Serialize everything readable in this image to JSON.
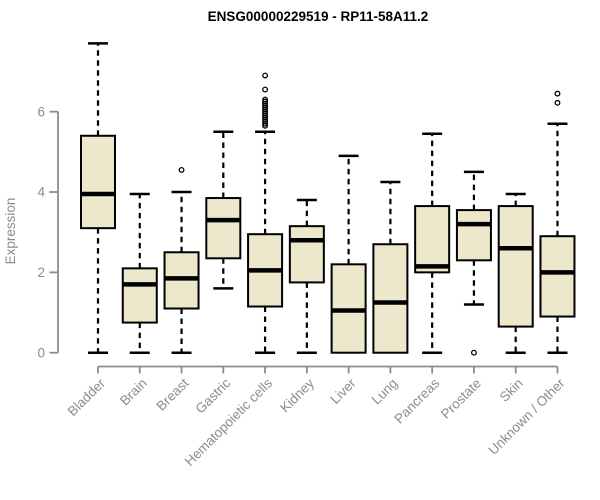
{
  "title": "ENSG00000229519 - RP11-58A11.2",
  "chart_data": {
    "type": "boxplot",
    "title": "ENSG00000229519 - RP11-58A11.2",
    "xlabel": "",
    "ylabel": "Expression",
    "ylim": [
      0,
      7.9
    ],
    "yticks": [
      0,
      2,
      4,
      6
    ],
    "grid": false,
    "legend": "none",
    "categories": [
      "Bladder",
      "Brain",
      "Breast",
      "Gastric",
      "Hematopoietic cells",
      "Kidney",
      "Liver",
      "Lung",
      "Pancreas",
      "Prostate",
      "Skin",
      "Unknown / Other"
    ],
    "series": [
      {
        "name": "Bladder",
        "low": 0,
        "q1": 3.1,
        "median": 3.95,
        "q3": 5.4,
        "high": 7.7,
        "outliers": []
      },
      {
        "name": "Brain",
        "low": 0,
        "q1": 0.75,
        "median": 1.7,
        "q3": 2.1,
        "high": 3.95,
        "outliers": []
      },
      {
        "name": "Breast",
        "low": 0,
        "q1": 1.1,
        "median": 1.85,
        "q3": 2.5,
        "high": 4.0,
        "outliers": [
          4.55
        ]
      },
      {
        "name": "Gastric",
        "low": 1.6,
        "q1": 2.35,
        "median": 3.3,
        "q3": 3.85,
        "high": 5.5,
        "outliers": []
      },
      {
        "name": "Hematopoietic cells",
        "low": 0,
        "q1": 1.15,
        "median": 2.05,
        "q3": 2.95,
        "high": 5.5,
        "outliers": [
          5.65,
          5.7,
          5.75,
          5.8,
          5.85,
          5.9,
          5.95,
          6.0,
          6.05,
          6.1,
          6.15,
          6.2,
          6.25,
          6.3,
          6.55,
          6.9
        ]
      },
      {
        "name": "Kidney",
        "low": 0,
        "q1": 1.75,
        "median": 2.8,
        "q3": 3.15,
        "high": 3.8,
        "outliers": []
      },
      {
        "name": "Liver",
        "low": 0,
        "q1": 0,
        "median": 1.05,
        "q3": 2.2,
        "high": 4.9,
        "outliers": []
      },
      {
        "name": "Lung",
        "low": 0,
        "q1": 0,
        "median": 1.25,
        "q3": 2.7,
        "high": 4.25,
        "outliers": []
      },
      {
        "name": "Pancreas",
        "low": 0,
        "q1": 2.0,
        "median": 2.15,
        "q3": 3.65,
        "high": 5.45,
        "outliers": []
      },
      {
        "name": "Prostate",
        "low": 1.2,
        "q1": 2.3,
        "median": 3.2,
        "q3": 3.55,
        "high": 4.5,
        "outliers": [
          0
        ]
      },
      {
        "name": "Skin",
        "low": 0,
        "q1": 0.65,
        "median": 2.6,
        "q3": 3.65,
        "high": 3.95,
        "outliers": []
      },
      {
        "name": "Unknown / Other",
        "low": 0,
        "q1": 0.9,
        "median": 2.0,
        "q3": 2.9,
        "high": 5.7,
        "outliers": [
          6.22,
          6.45
        ]
      }
    ]
  },
  "colors": {
    "box_fill": "#EDE8CC",
    "box_stroke": "#000000",
    "median": "#000000",
    "whisker": "#000000",
    "outlier": "#000000",
    "axis": "#8C8C8C",
    "tick_label": "#8C8C8C",
    "title": "#000000",
    "background": "#FFFFFF"
  }
}
